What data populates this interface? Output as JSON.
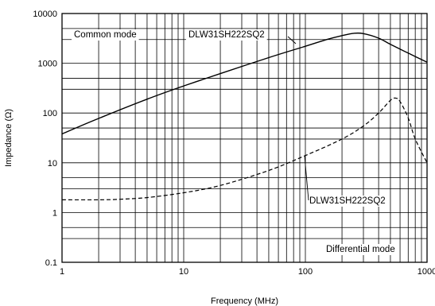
{
  "chart_data": {
    "type": "line",
    "x_scale": "log",
    "y_scale": "log",
    "xlim": [
      1,
      1000
    ],
    "ylim": [
      0.1,
      10000
    ],
    "xlabel": "Frequency (MHz)",
    "ylabel": "Impedance (Ω)",
    "x_ticks": [
      "1",
      "10",
      "100",
      "1000"
    ],
    "y_ticks": [
      "0.1",
      "1",
      "10",
      "100",
      "1000",
      "10000"
    ],
    "grid": true,
    "series": [
      {
        "name": "DLW31SH222SQ2",
        "mode_label": "Common mode",
        "line_style": "solid",
        "x": [
          1,
          2,
          5,
          10,
          20,
          50,
          100,
          150,
          200,
          250,
          300,
          400,
          500,
          700,
          1000
        ],
        "y": [
          38,
          78,
          190,
          350,
          620,
          1300,
          2200,
          3000,
          3600,
          4000,
          3950,
          3200,
          2400,
          1600,
          1050
        ]
      },
      {
        "name": "DLW31SH222SQ2",
        "mode_label": "Differential mode",
        "line_style": "dashed",
        "x": [
          1,
          2,
          3,
          5,
          10,
          20,
          50,
          100,
          200,
          300,
          400,
          500,
          550,
          600,
          700,
          800,
          1000
        ],
        "y": [
          1.8,
          1.8,
          1.85,
          2.0,
          2.5,
          3.5,
          7.0,
          14,
          30,
          55,
          100,
          180,
          200,
          170,
          80,
          30,
          10
        ]
      }
    ],
    "annotations": [
      "Common mode",
      "DLW31SH222SQ2",
      "DLW31SH222SQ2",
      "Differential mode"
    ]
  }
}
